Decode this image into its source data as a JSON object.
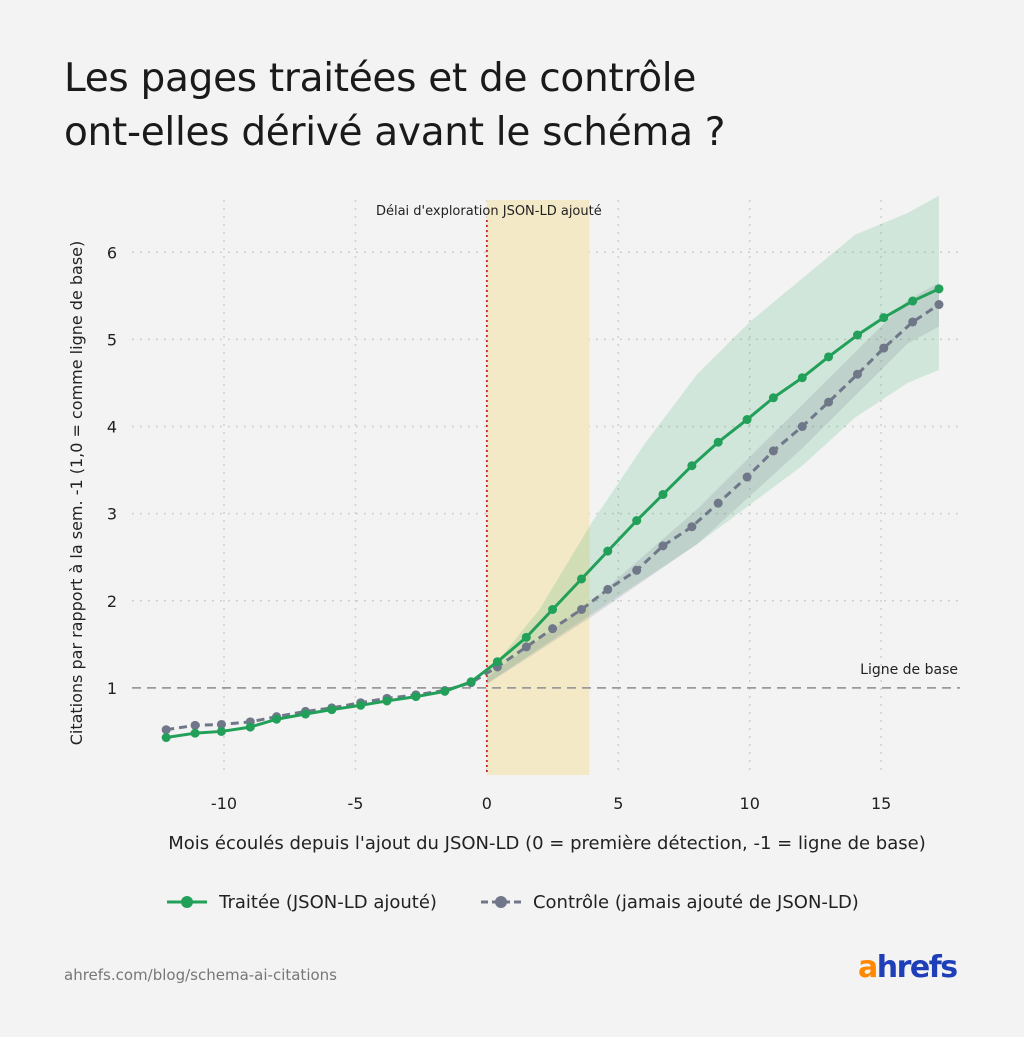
{
  "title_lines": [
    "Les pages traitées et de contrôle",
    "ont-elles dérivé avant le schéma ?"
  ],
  "source": "ahrefs.com/blog/schema-ai-citations",
  "brand": {
    "accent": "a",
    "rest": "hrefs",
    "accent_color": "#ff8800",
    "color": "#1f3fb8"
  },
  "chart_data": {
    "type": "line",
    "xlabel": "Mois écoulés depuis l'ajout du JSON-LD (0 = première détection, -1 = ligne de base)",
    "ylabel": "Citations par rapport à la sem. -1 (1,0 = comme ligne de base)",
    "xlim": [
      -13.5,
      18
    ],
    "ylim": [
      0,
      6.6
    ],
    "x_ticks": [
      -10,
      -5,
      0,
      5,
      10,
      15
    ],
    "x_tick_labels": [
      "-10",
      "-5",
      "0",
      "5",
      "10",
      "15"
    ],
    "y_ticks": [
      1,
      2,
      3,
      4,
      5,
      6
    ],
    "y_tick_labels": [
      "1",
      "2",
      "3",
      "4",
      "5",
      "6"
    ],
    "grid": true,
    "baseline": {
      "y": 1,
      "label": "Ligne de base"
    },
    "event_line": {
      "x": 0,
      "color": "#cc2222"
    },
    "shaded_region": {
      "x": [
        0,
        3.9
      ],
      "label": "Délai d'exploration JSON-LD ajouté",
      "color": "#f3e8c2"
    },
    "legend_position": "bottom",
    "series": [
      {
        "name": "Traitée (JSON-LD ajouté)",
        "color": "#22a05a",
        "style": "solid",
        "x": [
          -12.2,
          -11.1,
          -10.1,
          -9.0,
          -8.0,
          -6.9,
          -5.9,
          -4.8,
          -3.8,
          -2.7,
          -1.6,
          -0.6,
          0.4,
          1.5,
          2.5,
          3.6,
          4.6,
          5.7,
          6.7,
          7.8,
          8.8,
          9.9,
          10.9,
          12.0,
          13.0,
          14.1,
          15.1,
          16.2,
          17.2
        ],
        "y": [
          0.43,
          0.48,
          0.5,
          0.55,
          0.64,
          0.7,
          0.75,
          0.8,
          0.85,
          0.9,
          0.96,
          1.07,
          1.3,
          1.58,
          1.9,
          2.25,
          2.57,
          2.92,
          3.22,
          3.55,
          3.82,
          4.08,
          4.33,
          4.56,
          4.8,
          5.05,
          5.25,
          5.44,
          5.58
        ],
        "band_x": [
          0,
          2,
          4,
          6,
          8,
          10,
          12,
          14,
          16,
          17.2
        ],
        "band_upper": [
          1.15,
          1.9,
          2.9,
          3.8,
          4.6,
          5.2,
          5.7,
          6.2,
          6.45,
          6.65
        ],
        "band_lower": [
          1.05,
          1.45,
          1.85,
          2.25,
          2.65,
          3.1,
          3.55,
          4.1,
          4.5,
          4.65
        ]
      },
      {
        "name": "Contrôle (jamais ajouté de JSON-LD)",
        "color": "#6f7788",
        "style": "dashed",
        "x": [
          -12.2,
          -11.1,
          -10.1,
          -9.0,
          -8.0,
          -6.9,
          -5.9,
          -4.8,
          -3.8,
          -2.7,
          -1.6,
          -0.6,
          0.4,
          1.5,
          2.5,
          3.6,
          4.6,
          5.7,
          6.7,
          7.8,
          8.8,
          9.9,
          10.9,
          12.0,
          13.0,
          14.1,
          15.1,
          16.2,
          17.2
        ],
        "y": [
          0.52,
          0.57,
          0.58,
          0.61,
          0.67,
          0.73,
          0.77,
          0.83,
          0.88,
          0.92,
          0.97,
          1.06,
          1.24,
          1.47,
          1.68,
          1.9,
          2.13,
          2.35,
          2.63,
          2.85,
          3.12,
          3.42,
          3.72,
          4.0,
          4.28,
          4.6,
          4.9,
          5.2,
          5.4
        ],
        "band_x": [
          0,
          4,
          8,
          12,
          16,
          17.2
        ],
        "band_upper": [
          1.12,
          2.0,
          3.05,
          4.25,
          5.45,
          5.65
        ],
        "band_lower": [
          1.04,
          1.82,
          2.65,
          3.75,
          4.95,
          5.15
        ]
      }
    ]
  }
}
